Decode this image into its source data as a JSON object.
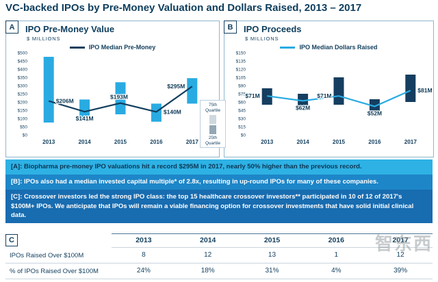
{
  "title": "VC-backed IPOs by Pre-Money Valuation and Dollars Raised, 2013 – 2017",
  "panels": {
    "a": {
      "label": "A",
      "title": "IPO Pre-Money Value",
      "units": "$ MILLIONS",
      "legend": "IPO Median Pre-Money"
    },
    "b": {
      "label": "B",
      "title": "IPO Proceeds",
      "units": "$ MILLIONS",
      "legend": "IPO Median Dollars Raised"
    }
  },
  "quartile_legend": {
    "top": "75th Quartile",
    "bottom": "25th Quartile"
  },
  "callouts": [
    {
      "text": "[A]: Biopharma pre-money IPO valuations hit a record $295M in 2017, nearly 50% higher than the previous record."
    },
    {
      "text": "[B]: IPOs also had a median invested capital multiple* of 2.8x, resulting in up-round IPOs for many of these companies."
    },
    {
      "text": "[C]: Crossover investors led the strong IPO class: the top 15 healthcare crossover investors** participated in 10 of 12 of 2017's $100M+ IPOs. We anticipate that IPOs will remain a viable financing option for crossover investments that have solid initial clinical data."
    }
  ],
  "table": {
    "label": "C",
    "years": [
      "2013",
      "2014",
      "2015",
      "2016",
      "2017"
    ],
    "rows": [
      {
        "label": "IPOs Raised Over $100M",
        "values": [
          "8",
          "12",
          "13",
          "1",
          "12"
        ]
      },
      {
        "label": "% of IPOs Raised Over $100M",
        "values": [
          "24%",
          "18%",
          "31%",
          "4%",
          "39%"
        ]
      }
    ]
  },
  "watermark": {
    "text": "智东西"
  },
  "colors": {
    "navy": "#123f5e",
    "cyan": "#29abe2",
    "bar_navy": "#153e60",
    "callout_a_bg": "#2eb1e4",
    "callout_b_bg": "#1d86c8",
    "callout_c_bg": "#186cb0"
  },
  "chart_data": [
    {
      "type": "bar+line",
      "panel": "A",
      "title": "IPO Pre-Money Value",
      "units": "$ Millions",
      "categories": [
        "2013",
        "2014",
        "2015",
        "2016",
        "2017"
      ],
      "ylim": [
        0,
        500
      ],
      "ytick_step": 50,
      "ytick_prefix": "$",
      "grid": false,
      "bars": {
        "name": "25th-75th quartile range",
        "color": "#29abe2",
        "ranges": [
          [
            75,
            475
          ],
          [
            100,
            215
          ],
          [
            125,
            320
          ],
          [
            80,
            190
          ],
          [
            190,
            345
          ]
        ]
      },
      "line": {
        "name": "IPO Median Pre-Money",
        "color": "#123f5e",
        "values": [
          206,
          141,
          193,
          140,
          295
        ],
        "point_labels": [
          "$206M",
          "$141M",
          "$193M",
          "$140M",
          "$295M"
        ],
        "label_side": [
          "right",
          "below",
          "above",
          "right",
          "left"
        ]
      }
    },
    {
      "type": "bar+line",
      "panel": "B",
      "title": "IPO Proceeds",
      "units": "$ Millions",
      "categories": [
        "2013",
        "2014",
        "2015",
        "2016",
        "2017"
      ],
      "ylim": [
        0,
        150
      ],
      "ytick_step": 15,
      "ytick_prefix": "$",
      "grid": false,
      "bars": {
        "name": "25th-75th quartile range",
        "color": "#153e60",
        "ranges": [
          [
            55,
            85
          ],
          [
            45,
            75
          ],
          [
            55,
            105
          ],
          [
            43,
            65
          ],
          [
            60,
            110
          ]
        ]
      },
      "line": {
        "name": "IPO Median Dollars Raised",
        "color": "#29abe2",
        "values": [
          71,
          62,
          71,
          52,
          81
        ],
        "point_labels": [
          "$71M",
          "$62M",
          "$71M",
          "$52M",
          "$81M"
        ],
        "label_side": [
          "left",
          "below",
          "left",
          "below",
          "right"
        ]
      }
    }
  ]
}
